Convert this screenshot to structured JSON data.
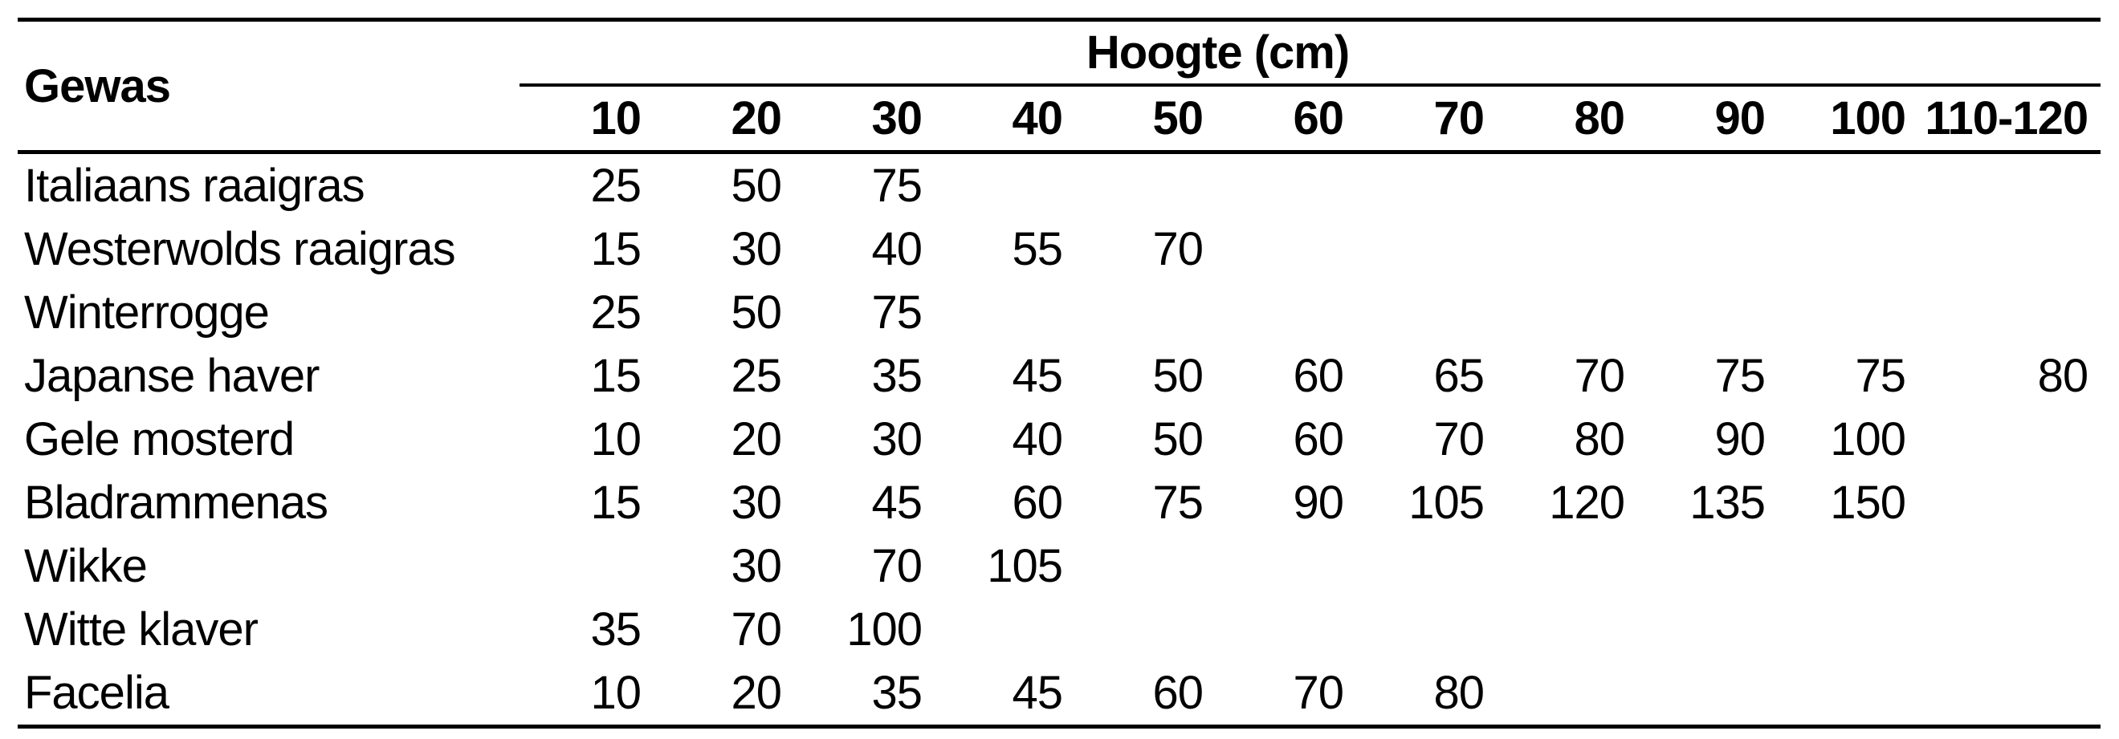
{
  "page": {
    "background_color": "#ffffff",
    "text_color": "#000000",
    "rule_color": "#000000"
  },
  "table": {
    "corner_header": "Gewas",
    "group_header": "Hoogte (cm)",
    "columns": [
      "10",
      "20",
      "30",
      "40",
      "50",
      "60",
      "70",
      "80",
      "90",
      "100",
      "110-120"
    ],
    "rows": [
      {
        "gewas": "Italiaans raaigras",
        "values": [
          "25",
          "50",
          "75",
          "",
          "",
          "",
          "",
          "",
          "",
          "",
          ""
        ]
      },
      {
        "gewas": "Westerwolds raaigras",
        "values": [
          "15",
          "30",
          "40",
          "55",
          "70",
          "",
          "",
          "",
          "",
          "",
          ""
        ]
      },
      {
        "gewas": "Winterrogge",
        "values": [
          "25",
          "50",
          "75",
          "",
          "",
          "",
          "",
          "",
          "",
          "",
          ""
        ]
      },
      {
        "gewas": "Japanse haver",
        "values": [
          "15",
          "25",
          "35",
          "45",
          "50",
          "60",
          "65",
          "70",
          "75",
          "75",
          "80"
        ]
      },
      {
        "gewas": "Gele mosterd",
        "values": [
          "10",
          "20",
          "30",
          "40",
          "50",
          "60",
          "70",
          "80",
          "90",
          "100",
          ""
        ]
      },
      {
        "gewas": "Bladrammenas",
        "values": [
          "15",
          "30",
          "45",
          "60",
          "75",
          "90",
          "105",
          "120",
          "135",
          "150",
          ""
        ]
      },
      {
        "gewas": "Wikke",
        "values": [
          "",
          "30",
          "70",
          "105",
          "",
          "",
          "",
          "",
          "",
          "",
          ""
        ]
      },
      {
        "gewas": "Witte klaver",
        "values": [
          "35",
          "70",
          "100",
          "",
          "",
          "",
          "",
          "",
          "",
          "",
          ""
        ]
      },
      {
        "gewas": "Facelia",
        "values": [
          "10",
          "20",
          "35",
          "45",
          "60",
          "70",
          "80",
          "",
          "",
          "",
          ""
        ]
      }
    ]
  },
  "chart_data": {
    "type": "table",
    "title": "Hoogte (cm)",
    "row_header_label": "Gewas",
    "columns": [
      "10",
      "20",
      "30",
      "40",
      "50",
      "60",
      "70",
      "80",
      "90",
      "100",
      "110-120"
    ],
    "rows": [
      {
        "label": "Italiaans raaigras",
        "values": [
          25,
          50,
          75,
          null,
          null,
          null,
          null,
          null,
          null,
          null,
          null
        ]
      },
      {
        "label": "Westerwolds raaigras",
        "values": [
          15,
          30,
          40,
          55,
          70,
          null,
          null,
          null,
          null,
          null,
          null
        ]
      },
      {
        "label": "Winterrogge",
        "values": [
          25,
          50,
          75,
          null,
          null,
          null,
          null,
          null,
          null,
          null,
          null
        ]
      },
      {
        "label": "Japanse haver",
        "values": [
          15,
          25,
          35,
          45,
          50,
          60,
          65,
          70,
          75,
          75,
          80
        ]
      },
      {
        "label": "Gele mosterd",
        "values": [
          10,
          20,
          30,
          40,
          50,
          60,
          70,
          80,
          90,
          100,
          null
        ]
      },
      {
        "label": "Bladrammenas",
        "values": [
          15,
          30,
          45,
          60,
          75,
          90,
          105,
          120,
          135,
          150,
          null
        ]
      },
      {
        "label": "Wikke",
        "values": [
          null,
          30,
          70,
          105,
          null,
          null,
          null,
          null,
          null,
          null,
          null
        ]
      },
      {
        "label": "Witte klaver",
        "values": [
          35,
          70,
          100,
          null,
          null,
          null,
          null,
          null,
          null,
          null,
          null
        ]
      },
      {
        "label": "Facelia",
        "values": [
          10,
          20,
          35,
          45,
          60,
          70,
          80,
          null,
          null,
          null,
          null
        ]
      }
    ]
  }
}
